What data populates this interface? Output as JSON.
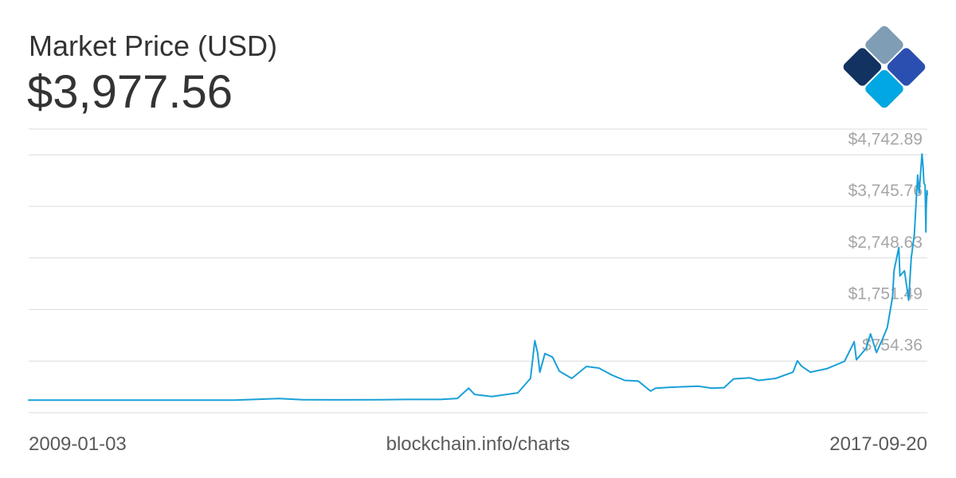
{
  "header": {
    "title": "Market Price (USD)",
    "current_value": "$3,977.56"
  },
  "logo": {
    "icon": "blockchain-diamond-logo-icon"
  },
  "footer": {
    "start_date": "2009-01-03",
    "source": "blockchain.info/charts",
    "end_date": "2017-09-20"
  },
  "colors": {
    "line": "#1aa0d8",
    "grid": "#dcdcdc",
    "tick_label": "#a6a6a6",
    "text": "#333333"
  },
  "chart_data": {
    "type": "line",
    "title": "Market Price (USD)",
    "xlabel": "",
    "ylabel": "",
    "grid": true,
    "xlim": [
      "2009-01-03",
      "2017-09-20"
    ],
    "ylim": [
      -243,
      5240
    ],
    "yticks": [
      754.36,
      1751.49,
      2748.63,
      3745.76,
      4742.89
    ],
    "ytick_labels": [
      "$754.36",
      "$1,751.49",
      "$2,748.63",
      "$3,745.76",
      "$4,742.89"
    ],
    "series": [
      {
        "values": [
          [
            "2009-01-03",
            0
          ],
          [
            "2010-01-01",
            0
          ],
          [
            "2011-01-01",
            0.3
          ],
          [
            "2011-06-08",
            29
          ],
          [
            "2011-09-01",
            8
          ],
          [
            "2012-01-01",
            5
          ],
          [
            "2012-06-01",
            6
          ],
          [
            "2012-09-01",
            12
          ],
          [
            "2013-01-01",
            13
          ],
          [
            "2013-03-01",
            33
          ],
          [
            "2013-04-10",
            230
          ],
          [
            "2013-05-01",
            110
          ],
          [
            "2013-07-01",
            70
          ],
          [
            "2013-10-01",
            140
          ],
          [
            "2013-11-15",
            420
          ],
          [
            "2013-11-30",
            1150
          ],
          [
            "2013-12-10",
            920
          ],
          [
            "2013-12-18",
            540
          ],
          [
            "2014-01-05",
            900
          ],
          [
            "2014-02-01",
            830
          ],
          [
            "2014-02-25",
            560
          ],
          [
            "2014-04-10",
            420
          ],
          [
            "2014-06-01",
            650
          ],
          [
            "2014-07-15",
            620
          ],
          [
            "2014-09-01",
            480
          ],
          [
            "2014-10-15",
            380
          ],
          [
            "2014-12-01",
            370
          ],
          [
            "2015-01-14",
            175
          ],
          [
            "2015-02-01",
            230
          ],
          [
            "2015-04-01",
            250
          ],
          [
            "2015-07-01",
            270
          ],
          [
            "2015-08-20",
            230
          ],
          [
            "2015-10-01",
            240
          ],
          [
            "2015-11-04",
            410
          ],
          [
            "2015-12-31",
            430
          ],
          [
            "2016-02-01",
            380
          ],
          [
            "2016-04-01",
            420
          ],
          [
            "2016-06-01",
            540
          ],
          [
            "2016-06-17",
            760
          ],
          [
            "2016-07-01",
            660
          ],
          [
            "2016-08-02",
            540
          ],
          [
            "2016-10-01",
            610
          ],
          [
            "2016-12-01",
            750
          ],
          [
            "2017-01-04",
            1130
          ],
          [
            "2017-01-12",
            780
          ],
          [
            "2017-02-15",
            1000
          ],
          [
            "2017-03-03",
            1280
          ],
          [
            "2017-03-24",
            920
          ],
          [
            "2017-04-15",
            1190
          ],
          [
            "2017-05-01",
            1400
          ],
          [
            "2017-05-20",
            2000
          ],
          [
            "2017-05-25",
            2500
          ],
          [
            "2017-06-11",
            2950
          ],
          [
            "2017-06-15",
            2400
          ],
          [
            "2017-07-01",
            2500
          ],
          [
            "2017-07-16",
            1930
          ],
          [
            "2017-07-25",
            2750
          ],
          [
            "2017-08-05",
            3200
          ],
          [
            "2017-08-12",
            3900
          ],
          [
            "2017-08-17",
            4350
          ],
          [
            "2017-08-22",
            4000
          ],
          [
            "2017-09-01",
            4760
          ],
          [
            "2017-09-05",
            4500
          ],
          [
            "2017-09-08",
            4200
          ],
          [
            "2017-09-12",
            4150
          ],
          [
            "2017-09-15",
            3250
          ],
          [
            "2017-09-16",
            3700
          ],
          [
            "2017-09-19",
            4050
          ],
          [
            "2017-09-20",
            3977.56
          ]
        ]
      }
    ]
  }
}
